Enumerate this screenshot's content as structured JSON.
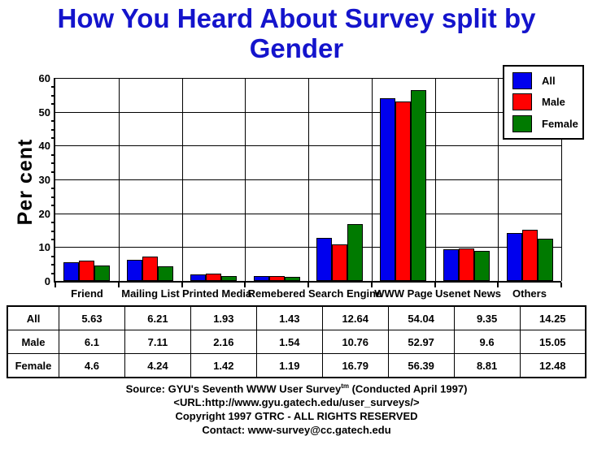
{
  "title": {
    "line1": "How You Heard About Survey split by",
    "line2": "Gender"
  },
  "colors": {
    "title": "#1414cc",
    "all": "#0000ee",
    "male": "#ff0000",
    "female": "#007a00",
    "axis": "#000000",
    "background": "#ffffff"
  },
  "chart_data": {
    "type": "bar",
    "title": "How You Heard About Survey split by Gender",
    "xlabel": "",
    "ylabel": "Per cent",
    "ylim": [
      0,
      60
    ],
    "yticks": [
      0,
      10,
      20,
      30,
      40,
      50,
      60
    ],
    "y_minor_tick_step": 2.5,
    "grid": true,
    "legend_position": "top-right",
    "categories": [
      "Friend",
      "Mailing List",
      "Printed Media",
      "Remebered",
      "Search Engine",
      "WWW Page",
      "Usenet News",
      "Others"
    ],
    "series": [
      {
        "name": "All",
        "color": "#0000ee",
        "values": [
          5.63,
          6.21,
          1.93,
          1.43,
          12.64,
          54.04,
          9.35,
          14.25
        ]
      },
      {
        "name": "Male",
        "color": "#ff0000",
        "values": [
          6.1,
          7.11,
          2.16,
          1.54,
          10.76,
          52.97,
          9.6,
          15.05
        ]
      },
      {
        "name": "Female",
        "color": "#007a00",
        "values": [
          4.6,
          4.24,
          1.42,
          1.19,
          16.79,
          56.39,
          8.81,
          12.48
        ]
      }
    ]
  },
  "table": {
    "rows": [
      {
        "label": "All",
        "values": [
          "5.63",
          "6.21",
          "1.93",
          "1.43",
          "12.64",
          "54.04",
          "9.35",
          "14.25"
        ]
      },
      {
        "label": "Male",
        "values": [
          "6.1",
          "7.11",
          "2.16",
          "1.54",
          "10.76",
          "52.97",
          "9.6",
          "15.05"
        ]
      },
      {
        "label": "Female",
        "values": [
          "4.6",
          "4.24",
          "1.42",
          "1.19",
          "16.79",
          "56.39",
          "8.81",
          "12.48"
        ]
      }
    ]
  },
  "footer": {
    "source_prefix": "Source: GYU's Seventh WWW User Survey",
    "source_sup": "tm",
    "source_suffix": " (Conducted April 1997)",
    "url_line": "<URL:http://www.gyu.gatech.edu/user_surveys/>",
    "copyright_line": "Copyright 1997 GTRC - ALL RIGHTS RESERVED",
    "contact_line": "Contact: www-survey@cc.gatech.edu"
  }
}
